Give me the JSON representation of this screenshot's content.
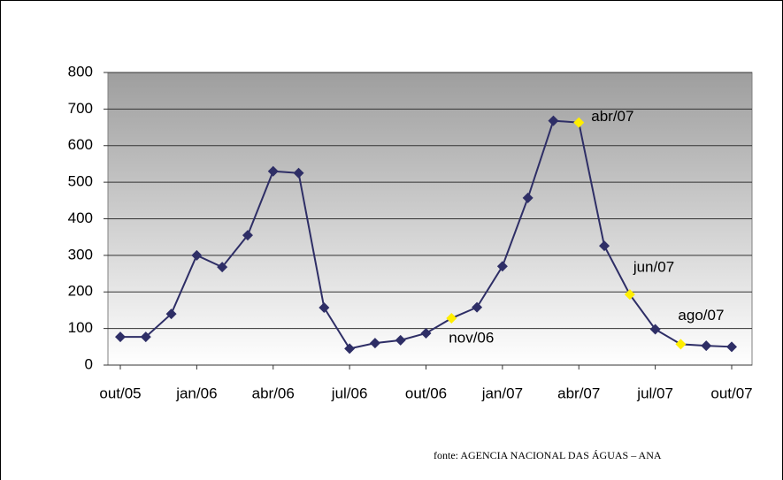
{
  "chart_data": {
    "type": "line",
    "categories": [
      "out/05",
      null,
      null,
      "jan/06",
      null,
      null,
      "abr/06",
      null,
      null,
      "jul/06",
      null,
      null,
      "out/06",
      null,
      null,
      "jan/07",
      null,
      null,
      "abr/07",
      null,
      null,
      "jul/07",
      null,
      null,
      "out/07"
    ],
    "series": [
      {
        "color": "#2e2e66",
        "values": [
          77,
          77,
          140,
          300,
          268,
          355,
          530,
          525,
          157,
          45,
          60,
          68,
          87,
          128,
          158,
          270,
          457,
          668,
          663,
          326,
          193,
          98,
          57,
          53,
          50
        ],
        "marker_colors": [
          "#2e2e66",
          "#2e2e66",
          "#2e2e66",
          "#2e2e66",
          "#2e2e66",
          "#2e2e66",
          "#2e2e66",
          "#2e2e66",
          "#2e2e66",
          "#2e2e66",
          "#2e2e66",
          "#2e2e66",
          "#2e2e66",
          "#ffee00",
          "#2e2e66",
          "#2e2e66",
          "#2e2e66",
          "#2e2e66",
          "#ffee00",
          "#2e2e66",
          "#ffee00",
          "#2e2e66",
          "#ffee00",
          "#2e2e66",
          "#2e2e66"
        ],
        "point_labels": [
          null,
          null,
          null,
          null,
          null,
          null,
          null,
          null,
          null,
          null,
          null,
          null,
          null,
          "nov/06",
          null,
          null,
          null,
          null,
          "abr/07",
          null,
          "jun/07",
          null,
          "ago/07",
          null,
          null
        ]
      }
    ],
    "ylim": [
      0,
      800
    ],
    "yticks": [
      0,
      100,
      200,
      300,
      400,
      500,
      600,
      700,
      800
    ],
    "grid": true,
    "source": "fonte: AGENCIA NACIONAL DAS ÁGUAS – ANA"
  }
}
